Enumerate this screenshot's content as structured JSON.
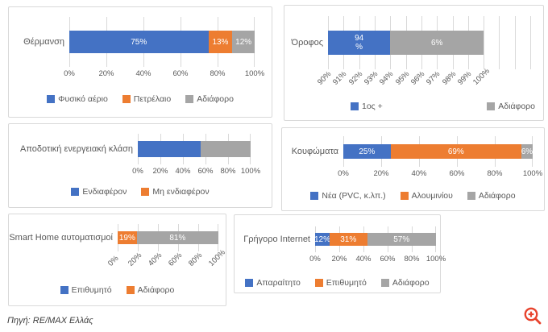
{
  "page": {
    "background": "#ffffff"
  },
  "colors": {
    "blue": "#4472c4",
    "orange": "#ed7d31",
    "gray": "#a5a5a5",
    "axis_text": "#595959",
    "panel_border": "#d9d9d9",
    "gridline": "#d9d9d9",
    "zoom_icon_red": "#e8432d"
  },
  "footer": {
    "source_text": "Πηγή: RE/MAX Ελλάς"
  },
  "icons": [
    {
      "name": "zoom-in-icon",
      "glyph": "magnifier-with-plus",
      "color": "#e8432d"
    }
  ],
  "chart_data": [
    {
      "type": "bar",
      "stacked": true,
      "orientation": "horizontal",
      "title": "Θέρμανση",
      "series": [
        {
          "name": "Φυσικό αέριο",
          "value": 75,
          "label": "75%",
          "color": "#4472c4"
        },
        {
          "name": "Πετρέλαιο",
          "value": 13,
          "label": "13%",
          "color": "#ed7d31"
        },
        {
          "name": "Αδιάφορο",
          "value": 12,
          "label": "12%",
          "color": "#a5a5a5"
        }
      ],
      "axis": {
        "min": 0,
        "max": 100,
        "ticks": [
          "0%",
          "20%",
          "40%",
          "60%",
          "80%",
          "100%"
        ],
        "rotated": false
      },
      "legend": [
        {
          "label": "Φυσικό αέριο",
          "color": "#4472c4"
        },
        {
          "label": "Πετρέλαιο",
          "color": "#ed7d31"
        },
        {
          "label": "Αδιάφορο",
          "color": "#a5a5a5"
        }
      ],
      "legend_layout": "center",
      "grid": true
    },
    {
      "type": "bar",
      "stacked": true,
      "orientation": "horizontal",
      "title": "Όροφος",
      "series": [
        {
          "name": "1ος +",
          "value": 94,
          "span": 4,
          "label": "94\n%",
          "color": "#4472c4"
        },
        {
          "name": "Αδιάφορο",
          "value": 6,
          "span": 6,
          "label": "6%",
          "color": "#a5a5a5"
        }
      ],
      "axis": {
        "min": 90,
        "max": 100,
        "ticks": [
          "90%",
          "91%",
          "92%",
          "93%",
          "94%",
          "95%",
          "96%",
          "97%",
          "98%",
          "99%",
          "100%"
        ],
        "rotated": true,
        "plot_extends_past_max": true
      },
      "legend": [
        {
          "label": "1ος +",
          "color": "#4472c4"
        },
        {
          "label": "Αδιάφορο",
          "color": "#a5a5a5"
        }
      ],
      "legend_layout": "spread",
      "grid": true
    },
    {
      "type": "bar",
      "stacked": true,
      "orientation": "horizontal",
      "title": "Αποδοτική ενεργειακή κλάση",
      "series": [
        {
          "name": "Ενδιαφέρον",
          "value": 56,
          "label": "",
          "color": "#4472c4"
        },
        {
          "name": "Μη ενδιαφέρον",
          "value": 44,
          "label": "",
          "color": "#a5a5a5"
        }
      ],
      "axis": {
        "min": 0,
        "max": 100,
        "ticks": [
          "0%",
          "20%",
          "40%",
          "60%",
          "80%",
          "100%"
        ],
        "rotated": false
      },
      "legend": [
        {
          "label": "Ενδιαφέρον",
          "color": "#4472c4"
        },
        {
          "label": "Μη ενδιαφέρον",
          "color": "#ed7d31"
        }
      ],
      "legend_layout": "center",
      "grid": true
    },
    {
      "type": "bar",
      "stacked": true,
      "orientation": "horizontal",
      "title": "Κουφώματα",
      "series": [
        {
          "name": "Νέα (PVC, κ.λπ.)",
          "value": 25,
          "label": "25%",
          "color": "#4472c4"
        },
        {
          "name": "Αλουμινίου",
          "value": 69,
          "label": "69%",
          "color": "#ed7d31"
        },
        {
          "name": "Αδιάφορο",
          "value": 6,
          "label": "6%",
          "color": "#a5a5a5"
        }
      ],
      "axis": {
        "min": 0,
        "max": 100,
        "ticks": [
          "0%",
          "20%",
          "40%",
          "60%",
          "80%",
          "100%"
        ],
        "rotated": false
      },
      "legend": [
        {
          "label": "Νέα (PVC, κ.λπ.)",
          "color": "#4472c4"
        },
        {
          "label": "Αλουμινίου",
          "color": "#ed7d31"
        },
        {
          "label": "Αδιάφορο",
          "color": "#a5a5a5"
        }
      ],
      "legend_layout": "center",
      "grid": true
    },
    {
      "type": "bar",
      "stacked": true,
      "orientation": "horizontal",
      "title": "Smart Home αυτοματισμοί",
      "series": [
        {
          "name": "Επιθυμητό",
          "value": 19,
          "label": "19%",
          "color": "#ed7d31"
        },
        {
          "name": "Αδιάφορο",
          "value": 81,
          "label": "81%",
          "color": "#a5a5a5"
        }
      ],
      "axis": {
        "min": 0,
        "max": 100,
        "ticks": [
          "0%",
          "20%",
          "40%",
          "60%",
          "80%",
          "100%"
        ],
        "rotated": true
      },
      "legend": [
        {
          "label": "Επιθυμητό",
          "color": "#4472c4"
        },
        {
          "label": "Αδιάφορο",
          "color": "#ed7d31"
        }
      ],
      "legend_layout": "center",
      "grid": true
    },
    {
      "type": "bar",
      "stacked": true,
      "orientation": "horizontal",
      "title": "Γρήγορο Internet",
      "series": [
        {
          "name": "Απαραίτητο",
          "value": 12,
          "label": "12%",
          "color": "#4472c4"
        },
        {
          "name": "Επιθυμητό",
          "value": 31,
          "label": "31%",
          "color": "#ed7d31"
        },
        {
          "name": "Αδιάφορο",
          "value": 57,
          "label": "57%",
          "color": "#a5a5a5"
        }
      ],
      "axis": {
        "min": 0,
        "max": 100,
        "ticks": [
          "0%",
          "20%",
          "40%",
          "60%",
          "80%",
          "100%"
        ],
        "rotated": false
      },
      "legend": [
        {
          "label": "Απαραίτητο",
          "color": "#4472c4"
        },
        {
          "label": "Επιθυμητό",
          "color": "#ed7d31"
        },
        {
          "label": "Αδιάφορο",
          "color": "#a5a5a5"
        }
      ],
      "legend_layout": "center",
      "grid": true
    }
  ]
}
